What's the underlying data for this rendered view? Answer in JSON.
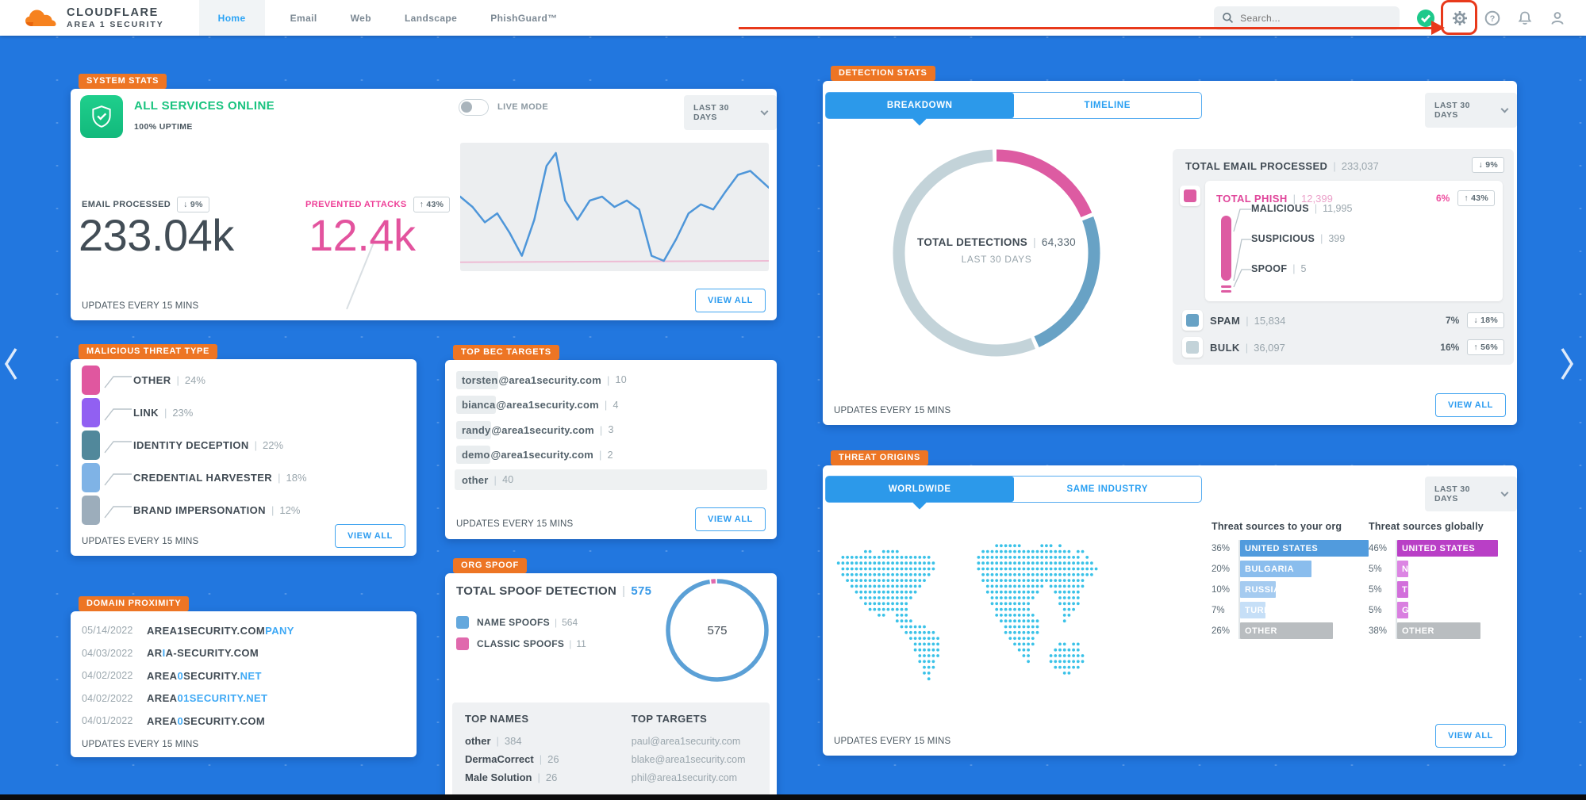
{
  "header": {
    "brand_name": "CLOUDFLARE",
    "brand_sub": "AREA 1 SECURITY",
    "nav": [
      {
        "label": "Home",
        "active": true
      },
      {
        "label": "Email",
        "active": false
      },
      {
        "label": "Web",
        "active": false
      },
      {
        "label": "Landscape",
        "active": false
      },
      {
        "label": "PhishGuard™",
        "active": false
      }
    ],
    "search_placeholder": "Search..."
  },
  "annotation": {
    "type": "red-arrow-and-box",
    "target": "settings-gear",
    "color": "#e8391b"
  },
  "system_stats": {
    "tag": "SYSTEM STATS",
    "status": "ALL SERVICES ONLINE",
    "uptime": "100% UPTIME",
    "live_mode": {
      "label": "LIVE MODE",
      "enabled": false
    },
    "range": "LAST 30 DAYS",
    "email_processed": {
      "label": "EMAIL PROCESSED",
      "delta": "↓ 9%",
      "value": "233.04k"
    },
    "prevented_attacks": {
      "label": "PREVENTED ATTACKS",
      "delta": "↑ 43%",
      "value": "12.4k"
    },
    "sparkline": {
      "line_color": "#4e96d9",
      "baseline_color": "#eebbd4",
      "line": [
        [
          0,
          42
        ],
        [
          4,
          50
        ],
        [
          8,
          62
        ],
        [
          12,
          55
        ],
        [
          16,
          70
        ],
        [
          20,
          88
        ],
        [
          24,
          60
        ],
        [
          28,
          18
        ],
        [
          31,
          8
        ],
        [
          34,
          45
        ],
        [
          38,
          60
        ],
        [
          42,
          45
        ],
        [
          46,
          42
        ],
        [
          50,
          50
        ],
        [
          54,
          45
        ],
        [
          58,
          52
        ],
        [
          62,
          88
        ],
        [
          66,
          92
        ],
        [
          70,
          75
        ],
        [
          74,
          55
        ],
        [
          78,
          48
        ],
        [
          82,
          52
        ],
        [
          86,
          38
        ],
        [
          90,
          25
        ],
        [
          94,
          22
        ],
        [
          100,
          35
        ]
      ],
      "baseline": [
        [
          0,
          93
        ],
        [
          100,
          92
        ]
      ]
    },
    "view_all": "VIEW ALL",
    "updates": "UPDATES EVERY 15 MINS"
  },
  "malicious_threat_type": {
    "tag": "MALICIOUS THREAT TYPE",
    "rows": [
      {
        "label": "OTHER",
        "pct": "24%",
        "color": "#e0579f"
      },
      {
        "label": "LINK",
        "pct": "23%",
        "color": "#9160f2"
      },
      {
        "label": "IDENTITY DECEPTION",
        "pct": "22%",
        "color": "#51889b"
      },
      {
        "label": "CREDENTIAL HARVESTER",
        "pct": "18%",
        "color": "#7fb3e6"
      },
      {
        "label": "BRAND IMPERSONATION",
        "pct": "12%",
        "color": "#9cadbb"
      }
    ],
    "view_all": "VIEW ALL",
    "updates": "UPDATES EVERY 15 MINS"
  },
  "domain_proximity": {
    "tag": "DOMAIN PROXIMITY",
    "rows": [
      {
        "date": "05/14/2022",
        "segments": [
          {
            "t": "AREA1SECURITY.COM",
            "hl": false
          },
          {
            "t": "PANY",
            "hl": true
          }
        ]
      },
      {
        "date": "04/03/2022",
        "segments": [
          {
            "t": "AR",
            "hl": false
          },
          {
            "t": "I",
            "hl": true
          },
          {
            "t": "A-SECURITY.COM",
            "hl": false
          }
        ]
      },
      {
        "date": "04/02/2022",
        "segments": [
          {
            "t": "AREA",
            "hl": false
          },
          {
            "t": "0",
            "hl": true
          },
          {
            "t": "SECURITY.",
            "hl": false
          },
          {
            "t": "NET",
            "hl": true
          }
        ]
      },
      {
        "date": "04/02/2022",
        "segments": [
          {
            "t": "AREA",
            "hl": false
          },
          {
            "t": "01SECURITY.NET",
            "hl": true
          }
        ]
      },
      {
        "date": "04/01/2022",
        "segments": [
          {
            "t": "AREA",
            "hl": false
          },
          {
            "t": "0",
            "hl": true
          },
          {
            "t": "SECURITY.COM",
            "hl": false
          }
        ]
      }
    ],
    "updates": "UPDATES EVERY 15 MINS"
  },
  "top_bec_targets": {
    "tag": "TOP BEC TARGETS",
    "rows": [
      {
        "name": "torsten",
        "rest": "@area1security.com",
        "count": "10",
        "full_row": false
      },
      {
        "name": "bianca",
        "rest": "@area1security.com",
        "count": "4",
        "full_row": false
      },
      {
        "name": "randy",
        "rest": "@area1security.com",
        "count": "3",
        "full_row": false
      },
      {
        "name": "demo",
        "rest": "@area1security.com",
        "count": "2",
        "full_row": false
      },
      {
        "name": "other",
        "rest": "",
        "count": "40",
        "full_row": true
      }
    ],
    "view_all": "VIEW ALL",
    "updates": "UPDATES EVERY 15 MINS"
  },
  "org_spoof": {
    "tag": "ORG SPOOF",
    "title": "TOTAL SPOOF DETECTION",
    "total": "575",
    "legend": [
      {
        "label": "NAME SPOOFS",
        "value": "564",
        "color": "#64a8dd"
      },
      {
        "label": "CLASSIC SPOOFS",
        "value": "11",
        "color": "#e069ad"
      }
    ],
    "donut": {
      "center_label": "575",
      "segments": [
        {
          "name": "classic spoofs",
          "value": 11,
          "color": "#e069ad"
        },
        {
          "name": "name spoofs",
          "value": 564,
          "color": "#5ba0d6"
        }
      ]
    },
    "top_names": {
      "header": "TOP NAMES",
      "rows": [
        {
          "name": "other",
          "count": "384"
        },
        {
          "name": "DermaCorrect",
          "count": "26"
        },
        {
          "name": "Male Solution",
          "count": "26"
        }
      ]
    },
    "top_targets": {
      "header": "TOP TARGETS",
      "rows": [
        "paul@area1security.com",
        "blake@area1security.com",
        "phil@area1security.com"
      ]
    }
  },
  "detection_stats": {
    "tag": "DETECTION STATS",
    "tabs": [
      {
        "label": "BREAKDOWN",
        "active": true
      },
      {
        "label": "TIMELINE",
        "active": false
      }
    ],
    "range": "LAST 30 DAYS",
    "donut": {
      "title": "TOTAL DETECTIONS",
      "total": "64,330",
      "subtitle": "LAST 30 DAYS",
      "segments": [
        {
          "name": "TOTAL PHISH",
          "value": 12399,
          "color": "#dd5ba2"
        },
        {
          "name": "SPAM",
          "value": 15834,
          "color": "#68a2c5"
        },
        {
          "name": "BULK",
          "value": 36097,
          "color": "#c3d3d9"
        }
      ]
    },
    "total_email": {
      "label": "TOTAL EMAIL PROCESSED",
      "value": "233,037",
      "delta": "↓ 9%"
    },
    "phish": {
      "label": "TOTAL PHISH",
      "value": "12,399",
      "pct": "6%",
      "delta": "↑ 43%",
      "color": "#dd5ba2",
      "children": [
        {
          "label": "MALICIOUS",
          "value": "11,995"
        },
        {
          "label": "SUSPICIOUS",
          "value": "399"
        },
        {
          "label": "SPOOF",
          "value": "5"
        }
      ]
    },
    "rows": [
      {
        "label": "SPAM",
        "value": "15,834",
        "pct": "7%",
        "delta": "↓ 18%",
        "color": "#68a2c5"
      },
      {
        "label": "BULK",
        "value": "36,097",
        "pct": "16%",
        "delta": "↑ 56%",
        "color": "#c3d3d9"
      }
    ],
    "view_all": "VIEW ALL",
    "updates": "UPDATES EVERY 15 MINS"
  },
  "threat_origins": {
    "tag": "THREAT ORIGINS",
    "tabs": [
      {
        "label": "WORLDWIDE",
        "active": true
      },
      {
        "label": "SAME INDUSTRY",
        "active": false
      }
    ],
    "range": "LAST 30 DAYS",
    "org_sources": {
      "header": "Threat sources to your org",
      "rows": [
        {
          "pct": "36%",
          "v": 36,
          "label": "UNITED STATES",
          "color": "#519bdd"
        },
        {
          "pct": "20%",
          "v": 20,
          "label": "BULGARIA",
          "color": "#8abded"
        },
        {
          "pct": "10%",
          "v": 10,
          "label": "RUSSIA",
          "color": "#a5cbf0"
        },
        {
          "pct": "7%",
          "v": 7,
          "label": "TURKEY",
          "color": "#c6dff7"
        },
        {
          "pct": "26%",
          "v": 26,
          "label": "OTHER",
          "color": "#b9bdc0"
        }
      ]
    },
    "global_sources": {
      "header": "Threat sources globally",
      "rows": [
        {
          "pct": "46%",
          "v": 46,
          "label": "UNITED STATES",
          "color": "#b93fc6"
        },
        {
          "pct": "5%",
          "v": 5,
          "label": "NETHERLANDS",
          "color": "#dc85e3"
        },
        {
          "pct": "5%",
          "v": 5,
          "label": "TURKEY",
          "color": "#d26fdb"
        },
        {
          "pct": "5%",
          "v": 5,
          "label": "GERMANY",
          "color": "#d97fe0"
        },
        {
          "pct": "38%",
          "v": 38,
          "label": "OTHER",
          "color": "#b9bdc0"
        }
      ]
    },
    "view_all": "VIEW ALL",
    "updates": "UPDATES EVERY 15 MINS"
  }
}
